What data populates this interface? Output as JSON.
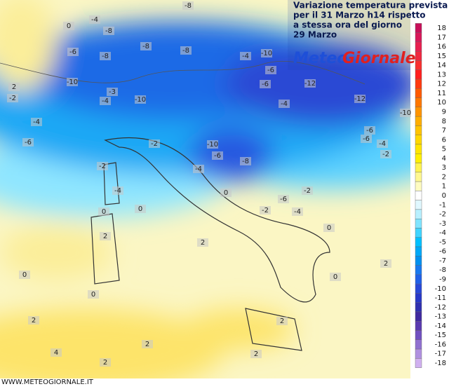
{
  "header": {
    "title_lines": [
      "Variazione temperatura prevista",
      "per il 31 Marzo h14 rispetto",
      "a stessa ora del giorno",
      "29 Marzo"
    ],
    "logo": [
      "Meteo",
      "Giornale"
    ]
  },
  "footer": {
    "website": "WWW.METEOGIORNALE.IT"
  },
  "legend": {
    "ticks": [
      18,
      17,
      16,
      15,
      14,
      13,
      12,
      11,
      10,
      9,
      8,
      7,
      6,
      5,
      4,
      3,
      2,
      1,
      0,
      -1,
      -2,
      -3,
      -4,
      -5,
      -6,
      -7,
      -8,
      -9,
      -10,
      -11,
      -12,
      -13,
      -14,
      -15,
      -16,
      -17,
      -18
    ],
    "colors": [
      "#c8105a",
      "#d8185a",
      "#e82050",
      "#f02840",
      "#f83030",
      "#ff2020",
      "#ff3a10",
      "#ff5a00",
      "#ff7800",
      "#ff9400",
      "#ffae00",
      "#ffc400",
      "#ffd800",
      "#ffe600",
      "#fff000",
      "#fff450",
      "#fff890",
      "#fffcc0",
      "#ffffff",
      "#e0f8ff",
      "#b8f0ff",
      "#80e4ff",
      "#40d4ff",
      "#00c0ff",
      "#00a8f8",
      "#0090f0",
      "#1878f0",
      "#2060e8",
      "#2848d8",
      "#2838c8",
      "#3030b0",
      "#402aa0",
      "#5a3ab0",
      "#7050c0",
      "#9070d0",
      "#b090e0",
      "#d0b0f0"
    ]
  },
  "map": {
    "labels": [
      0,
      -4,
      -8,
      -8,
      -8,
      -8,
      -6,
      -8,
      -4,
      -10,
      -6,
      -10,
      -3,
      -4,
      -10,
      -6,
      -12,
      -4,
      -12,
      -10,
      -2,
      2,
      -4,
      -6,
      -2,
      -10,
      -6,
      -8,
      -4,
      -2,
      -4,
      0,
      -6,
      -6,
      -4,
      -2,
      -2,
      -6,
      -2,
      -4,
      0,
      0,
      0,
      2,
      0,
      0,
      2,
      2,
      0,
      2,
      2,
      2,
      4,
      2,
      2
    ]
  }
}
